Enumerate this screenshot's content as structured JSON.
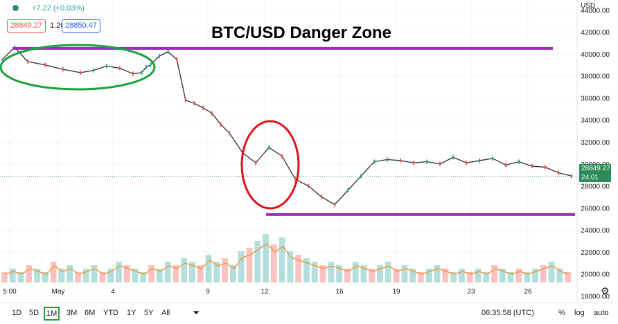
{
  "header": {
    "change_text": "+7.22 (+0.03%)",
    "sell_price": "28849.27",
    "spread": "1.20",
    "buy_price": "28850.47",
    "currency": "USD"
  },
  "chart_data": {
    "type": "line",
    "title": "BTC/USD Danger Zone",
    "y_ticks": [
      "44000.00",
      "42000.00",
      "40000.00",
      "38000.00",
      "36000.00",
      "34000.00",
      "32000.00",
      "30000.00",
      "28000.00",
      "26000.00",
      "24000.00",
      "22000.00",
      "20000.00",
      "18000.00"
    ],
    "x_ticks": [
      "5:00",
      "May",
      "4",
      "9",
      "12",
      "16",
      "19",
      "23",
      "26"
    ],
    "ylim": [
      17400,
      44900
    ],
    "series": [
      {
        "x_index": [
          0,
          3,
          6,
          10,
          14,
          18,
          21,
          24,
          27,
          30,
          32,
          33,
          34,
          36,
          38,
          40,
          42,
          44,
          46,
          48,
          50,
          52,
          55,
          58,
          61,
          64,
          67,
          70,
          73,
          76,
          79,
          82,
          85,
          88,
          91,
          94,
          97,
          100,
          103,
          106,
          109,
          112,
          115,
          118,
          121,
          124,
          127,
          130
        ],
        "values": [
          39400,
          40600,
          39300,
          39000,
          38600,
          38300,
          38500,
          38900,
          38700,
          38200,
          38300,
          38800,
          39000,
          39800,
          40200,
          39500,
          35800,
          35500,
          35100,
          34600,
          33600,
          32800,
          31000,
          30100,
          31500,
          30700,
          28600,
          28000,
          27000,
          26300,
          27600,
          28900,
          30200,
          30400,
          30300,
          30100,
          30200,
          30000,
          30600,
          30100,
          30300,
          30500,
          29900,
          30200,
          29800,
          29700,
          29200,
          28900
        ]
      }
    ],
    "current_price": "28849.27",
    "countdown": "24:01",
    "horizontal_lines": [
      {
        "value": 40500,
        "color": "#9b30b8"
      },
      {
        "value": 25400,
        "color": "#9b30b8"
      }
    ],
    "volume": [
      3,
      4,
      3,
      5,
      4,
      3,
      6,
      4,
      5,
      3,
      4,
      5,
      3,
      4,
      6,
      5,
      4,
      3,
      5,
      4,
      6,
      5,
      7,
      6,
      5,
      8,
      6,
      7,
      5,
      9,
      10,
      12,
      14,
      11,
      13,
      9,
      8,
      7,
      6,
      5,
      6,
      5,
      4,
      6,
      5,
      4,
      5,
      6,
      4,
      5,
      4,
      3,
      4,
      5,
      4,
      3,
      4,
      3,
      4,
      3,
      5,
      4,
      3,
      4,
      3,
      4,
      5,
      6,
      4,
      3
    ],
    "annotations": [
      {
        "shape": "ellipse",
        "color": "#1aa33a"
      },
      {
        "shape": "ellipse",
        "color": "#e0101a"
      }
    ],
    "colors": {
      "up": "#26a69a",
      "down": "#ef5350",
      "volume_ma": "#f68b1f",
      "level_line": "#9b30b8"
    }
  },
  "toolbar": {
    "timeframes": [
      "1D",
      "5D",
      "1M",
      "3M",
      "6M",
      "YTD",
      "1Y",
      "5Y",
      "All"
    ],
    "active": "1M",
    "time": "06:35:58 (UTC)",
    "percent": "%",
    "log": "log",
    "auto": "auto"
  }
}
